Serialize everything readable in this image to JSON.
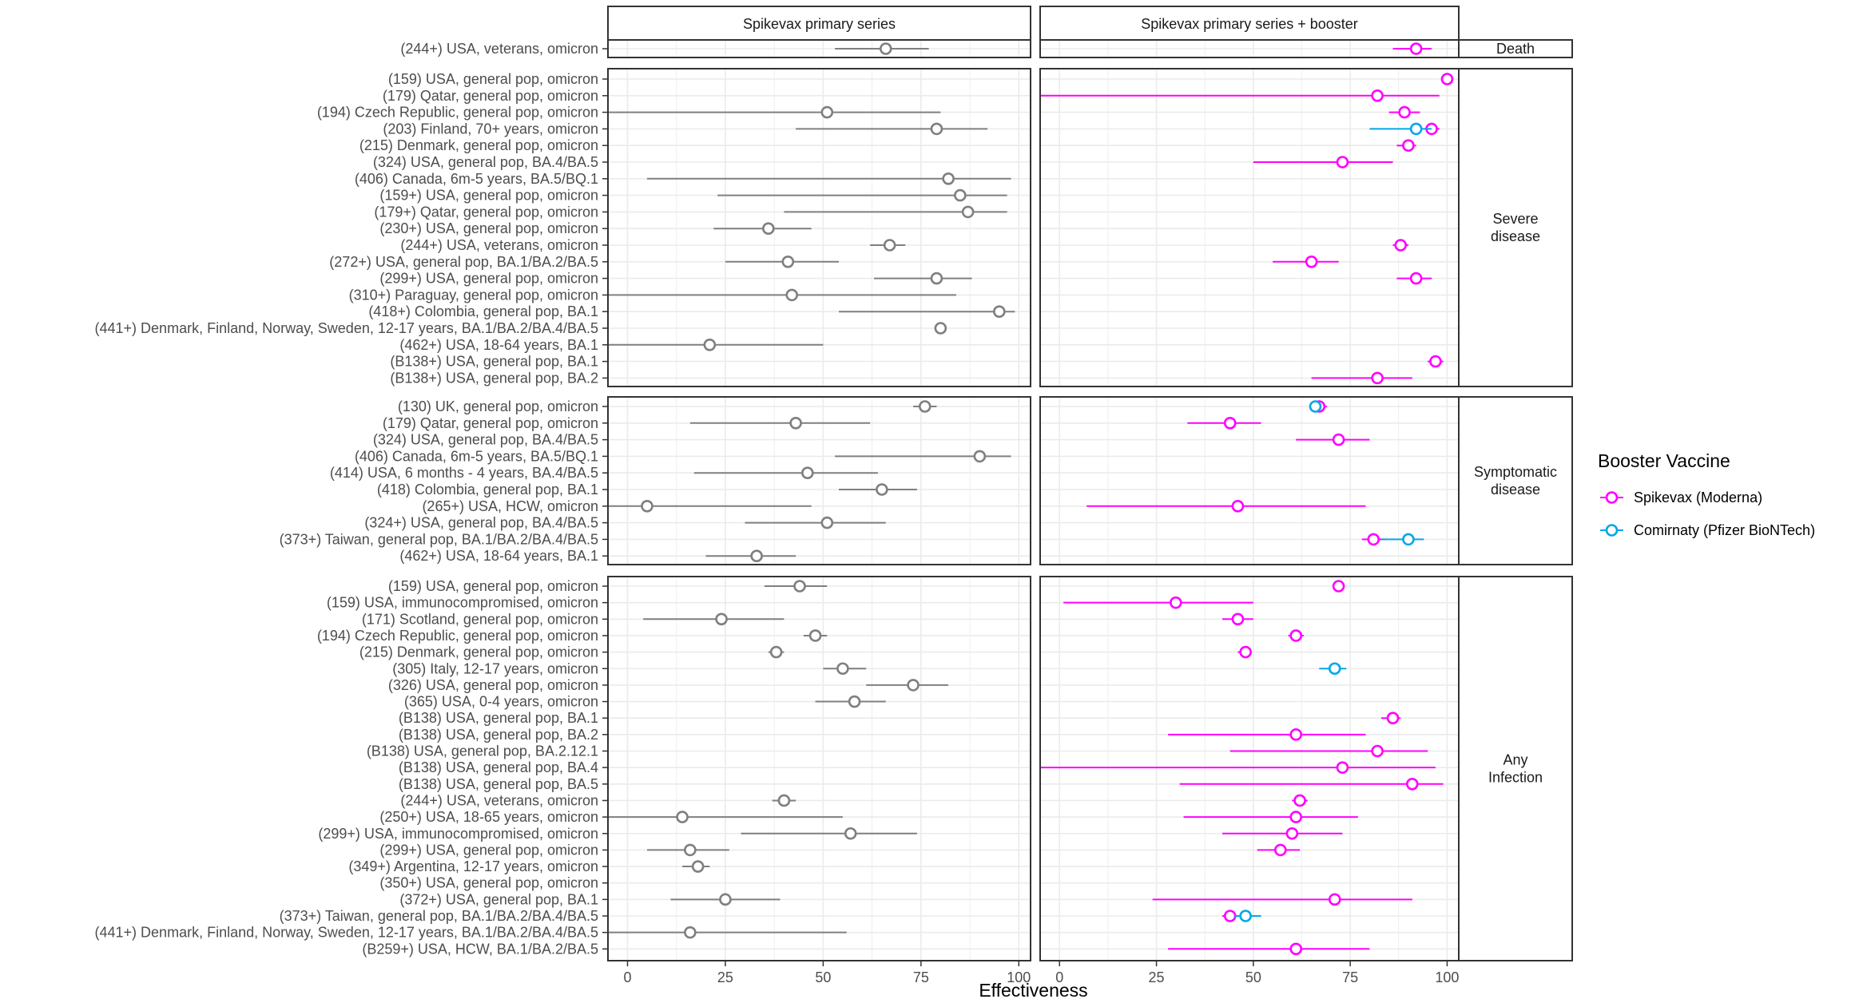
{
  "colors": {
    "moderna": "#ff00ff",
    "pfizer": "#00a8e8",
    "primary": "#7f7f7f",
    "grid": "#ebebeb",
    "text": "#4d4d4d",
    "frame": "#333333"
  },
  "chart_data": {
    "type": "forest-plot",
    "xlabel": "Effectiveness",
    "x_ticks": [
      "0",
      "25",
      "50",
      "75",
      "100"
    ],
    "xlim": [
      -5,
      103
    ],
    "columns": [
      "Spikevax primary series",
      "Spikevax primary series + booster"
    ],
    "facets": [
      "Death",
      "Severe\ndisease",
      "Symptomatic\ndisease",
      "Any\nInfection"
    ],
    "legend": {
      "title": "Booster Vaccine",
      "entries": [
        {
          "label": "Spikevax (Moderna)",
          "color_key": "moderna"
        },
        {
          "label": "Comirnaty (Pfizer BioNTech)",
          "color_key": "pfizer"
        }
      ]
    },
    "panels": [
      {
        "facet": "Death",
        "rows": [
          {
            "label": "(244+) USA, veterans, omicron",
            "primary": [
              66,
              53,
              77
            ],
            "booster": [
              [
                92,
                86,
                96,
                "moderna"
              ]
            ]
          }
        ]
      },
      {
        "facet": "Severe\ndisease",
        "rows": [
          {
            "label": "(159) USA, general pop, omicron",
            "primary": null,
            "booster": [
              [
                100,
                99,
                100,
                "moderna"
              ]
            ]
          },
          {
            "label": "(179) Qatar, general pop, omicron",
            "primary": null,
            "booster": [
              [
                82,
                -5,
                98,
                "moderna"
              ]
            ]
          },
          {
            "label": "(194) Czech Republic, general pop, omicron",
            "primary": [
              51,
              -5,
              80
            ],
            "booster": [
              [
                89,
                85,
                93,
                "moderna"
              ]
            ]
          },
          {
            "label": "(203) Finland, 70+ years, omicron",
            "primary": [
              79,
              43,
              92
            ],
            "booster": [
              [
                96,
                94,
                98,
                "moderna"
              ],
              [
                92,
                80,
                96,
                "pfizer"
              ]
            ]
          },
          {
            "label": "(215) Denmark, general pop, omicron",
            "primary": null,
            "booster": [
              [
                90,
                87,
                92,
                "moderna"
              ]
            ]
          },
          {
            "label": "(324) USA, general pop, BA.4/BA.5",
            "primary": null,
            "booster": [
              [
                73,
                50,
                86,
                "moderna"
              ]
            ]
          },
          {
            "label": "(406) Canada, 6m-5 years, BA.5/BQ.1",
            "primary": [
              82,
              5,
              98
            ],
            "booster": null
          },
          {
            "label": "(159+) USA, general pop, omicron",
            "primary": [
              85,
              23,
              97
            ],
            "booster": null
          },
          {
            "label": "(179+) Qatar, general pop, omicron",
            "primary": [
              87,
              40,
              97
            ],
            "booster": null
          },
          {
            "label": "(230+) USA, general pop, omicron",
            "primary": [
              36,
              22,
              47
            ],
            "booster": null
          },
          {
            "label": "(244+) USA, veterans, omicron",
            "primary": [
              67,
              62,
              71
            ],
            "booster": [
              [
                88,
                86,
                90,
                "moderna"
              ]
            ]
          },
          {
            "label": "(272+) USA, general pop, BA.1/BA.2/BA.5",
            "primary": [
              41,
              25,
              54
            ],
            "booster": [
              [
                65,
                55,
                72,
                "moderna"
              ]
            ]
          },
          {
            "label": "(299+) USA, general pop, omicron",
            "primary": [
              79,
              63,
              88
            ],
            "booster": [
              [
                92,
                87,
                96,
                "moderna"
              ]
            ]
          },
          {
            "label": "(310+) Paraguay, general pop, omicron",
            "primary": [
              42,
              -5,
              84
            ],
            "booster": null
          },
          {
            "label": "(418+) Colombia, general pop, BA.1",
            "primary": [
              95,
              54,
              99
            ],
            "booster": null
          },
          {
            "label": "(441+) Denmark, Finland, Norway, Sweden, 12-17 years, BA.1/BA.2/BA.4/BA.5",
            "primary": [
              80,
              80,
              80
            ],
            "booster": null
          },
          {
            "label": "(462+) USA, 18-64 years, BA.1",
            "primary": [
              21,
              -5,
              50
            ],
            "booster": null
          },
          {
            "label": "(B138+) USA, general pop, BA.1",
            "primary": null,
            "booster": [
              [
                97,
                95,
                99,
                "moderna"
              ]
            ]
          },
          {
            "label": "(B138+) USA, general pop, BA.2",
            "primary": null,
            "booster": [
              [
                82,
                65,
                91,
                "moderna"
              ]
            ]
          }
        ]
      },
      {
        "facet": "Symptomatic\ndisease",
        "rows": [
          {
            "label": "(130) UK, general pop, omicron",
            "primary": [
              76,
              73,
              79
            ],
            "booster": [
              [
                67,
                66,
                69,
                "moderna"
              ],
              [
                66,
                65,
                67,
                "pfizer"
              ]
            ]
          },
          {
            "label": "(179) Qatar, general pop, omicron",
            "primary": [
              43,
              16,
              62
            ],
            "booster": [
              [
                44,
                33,
                52,
                "moderna"
              ]
            ]
          },
          {
            "label": "(324) USA, general pop, BA.4/BA.5",
            "primary": null,
            "booster": [
              [
                72,
                61,
                80,
                "moderna"
              ]
            ]
          },
          {
            "label": "(406) Canada, 6m-5 years, BA.5/BQ.1",
            "primary": [
              90,
              53,
              98
            ],
            "booster": null
          },
          {
            "label": "(414) USA, 6 months - 4 years, BA.4/BA.5",
            "primary": [
              46,
              17,
              64
            ],
            "booster": null
          },
          {
            "label": "(418) Colombia, general pop, BA.1",
            "primary": [
              65,
              54,
              74
            ],
            "booster": null
          },
          {
            "label": "(265+) USA, HCW, omicron",
            "primary": [
              5,
              -5,
              47
            ],
            "booster": [
              [
                46,
                7,
                79,
                "moderna"
              ]
            ]
          },
          {
            "label": "(324+) USA, general pop, BA.4/BA.5",
            "primary": [
              51,
              30,
              66
            ],
            "booster": null
          },
          {
            "label": "(373+) Taiwan, general pop, BA.1/BA.2/BA.4/BA.5",
            "primary": null,
            "booster": [
              [
                81,
                78,
                84,
                "moderna"
              ],
              [
                90,
                83,
                94,
                "pfizer"
              ]
            ]
          },
          {
            "label": "(462+) USA, 18-64 years, BA.1",
            "primary": [
              33,
              20,
              43
            ],
            "booster": null
          }
        ]
      },
      {
        "facet": "Any\nInfection",
        "rows": [
          {
            "label": "(159) USA, general pop, omicron",
            "primary": [
              44,
              35,
              51
            ],
            "booster": [
              [
                72,
                71,
                73,
                "moderna"
              ]
            ]
          },
          {
            "label": "(159) USA, immunocompromised, omicron",
            "primary": null,
            "booster": [
              [
                30,
                1,
                50,
                "moderna"
              ]
            ]
          },
          {
            "label": "(171) Scotland, general pop, omicron",
            "primary": [
              24,
              4,
              40
            ],
            "booster": [
              [
                46,
                42,
                50,
                "moderna"
              ]
            ]
          },
          {
            "label": "(194) Czech Republic, general pop, omicron",
            "primary": [
              48,
              45,
              51
            ],
            "booster": [
              [
                61,
                59,
                63,
                "moderna"
              ]
            ]
          },
          {
            "label": "(215) Denmark, general pop, omicron",
            "primary": [
              38,
              36,
              40
            ],
            "booster": [
              [
                48,
                46,
                49,
                "moderna"
              ]
            ]
          },
          {
            "label": "(305) Italy, 12-17 years, omicron",
            "primary": [
              55,
              50,
              61
            ],
            "booster": [
              [
                71,
                67,
                74,
                "pfizer"
              ]
            ]
          },
          {
            "label": "(326) USA, general pop, omicron",
            "primary": [
              73,
              61,
              82
            ],
            "booster": null
          },
          {
            "label": "(365) USA, 0-4 years, omicron",
            "primary": [
              58,
              48,
              66
            ],
            "booster": null
          },
          {
            "label": "(B138) USA, general pop, BA.1",
            "primary": null,
            "booster": [
              [
                86,
                83,
                88,
                "moderna"
              ]
            ]
          },
          {
            "label": "(B138) USA, general pop, BA.2",
            "primary": null,
            "booster": [
              [
                61,
                28,
                79,
                "moderna"
              ]
            ]
          },
          {
            "label": "(B138) USA, general pop, BA.2.12.1",
            "primary": null,
            "booster": [
              [
                82,
                44,
                95,
                "moderna"
              ]
            ]
          },
          {
            "label": "(B138) USA, general pop, BA.4",
            "primary": null,
            "booster": [
              [
                73,
                -5,
                97,
                "moderna"
              ]
            ]
          },
          {
            "label": "(B138) USA, general pop, BA.5",
            "primary": null,
            "booster": [
              [
                91,
                31,
                99,
                "moderna"
              ]
            ]
          },
          {
            "label": "(244+) USA, veterans, omicron",
            "primary": [
              40,
              37,
              43
            ],
            "booster": [
              [
                62,
                60,
                64,
                "moderna"
              ]
            ]
          },
          {
            "label": "(250+) USA, 18-65 years, omicron",
            "primary": [
              14,
              -5,
              55
            ],
            "booster": [
              [
                61,
                32,
                77,
                "moderna"
              ]
            ]
          },
          {
            "label": "(299+) USA, immunocompromised, omicron",
            "primary": [
              57,
              29,
              74
            ],
            "booster": [
              [
                60,
                42,
                73,
                "moderna"
              ]
            ]
          },
          {
            "label": "(299+) USA, general pop, omicron",
            "primary": [
              16,
              5,
              26
            ],
            "booster": [
              [
                57,
                51,
                62,
                "moderna"
              ]
            ]
          },
          {
            "label": "(349+) Argentina, 12-17 years, omicron",
            "primary": [
              18,
              14,
              21
            ],
            "booster": null
          },
          {
            "label": "(350+) USA, general pop, omicron",
            "primary": null,
            "booster": null
          },
          {
            "label": "(372+) USA, general pop, BA.1",
            "primary": [
              25,
              11,
              39
            ],
            "booster": [
              [
                71,
                24,
                91,
                "moderna"
              ]
            ]
          },
          {
            "label": "(373+) Taiwan, general pop, BA.1/BA.2/BA.4/BA.5",
            "primary": null,
            "booster": [
              [
                44,
                42,
                46,
                "moderna"
              ],
              [
                48,
                45,
                52,
                "pfizer"
              ]
            ]
          },
          {
            "label": "(441+) Denmark, Finland, Norway, Sweden, 12-17 years, BA.1/BA.2/BA.4/BA.5",
            "primary": [
              16,
              -5,
              56
            ],
            "booster": null
          },
          {
            "label": "(B259+) USA, HCW, BA.1/BA.2/BA.5",
            "primary": null,
            "booster": [
              [
                61,
                28,
                80,
                "moderna"
              ]
            ]
          }
        ]
      }
    ]
  }
}
